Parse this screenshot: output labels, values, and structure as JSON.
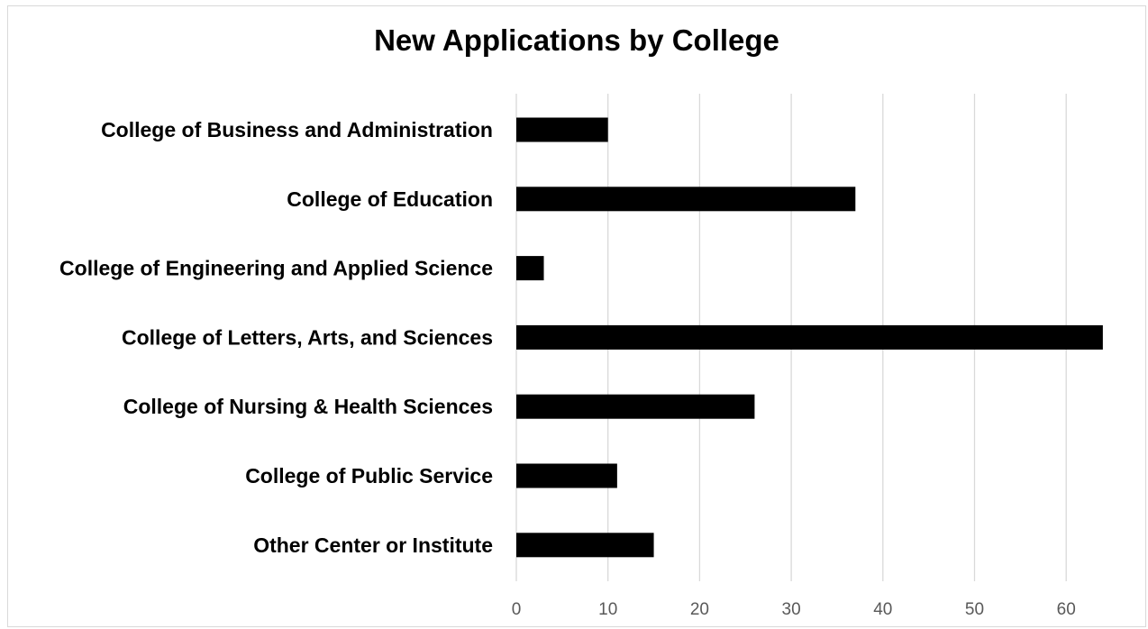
{
  "chart_data": {
    "type": "bar",
    "orientation": "horizontal",
    "title": "New Applications by College",
    "categories": [
      "College of Business and Administration",
      "College of Education",
      "College of Engineering and Applied Science",
      "College of Letters, Arts, and Sciences",
      "College of Nursing & Health Sciences",
      "College of Public Service",
      "Other Center or Institute"
    ],
    "values": [
      10,
      37,
      3,
      64,
      26,
      11,
      15
    ],
    "xlabel": "",
    "ylabel": "",
    "xlim": [
      0,
      65
    ],
    "x_ticks": [
      0,
      10,
      20,
      30,
      40,
      50,
      60
    ],
    "grid": "vertical",
    "legend": "none",
    "colors": {
      "bar": "#000000",
      "grid": "#d9d9d9",
      "tick_text": "#595959",
      "text": "#000000",
      "border": "#d9d9d9"
    }
  }
}
